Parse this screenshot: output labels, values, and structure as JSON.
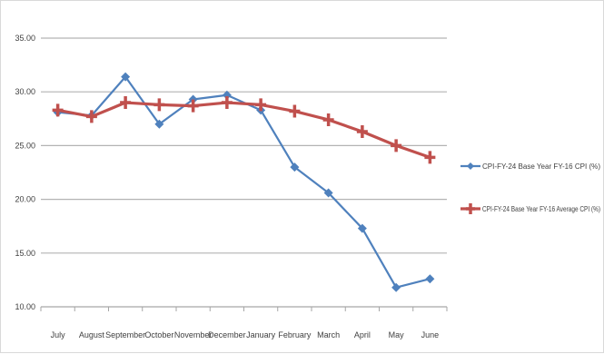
{
  "chart_data": {
    "type": "line",
    "title": "",
    "xlabel": "",
    "ylabel": "",
    "categories": [
      "July",
      "August",
      "September",
      "October",
      "November",
      "December",
      "January",
      "February",
      "March",
      "April",
      "May",
      "June"
    ],
    "ylim": [
      10.0,
      35.0
    ],
    "yticks": [
      "10.00",
      "15.00",
      "20.00",
      "25.00",
      "30.00",
      "35.00"
    ],
    "grid": true,
    "legend_position": "right",
    "series": [
      {
        "name": "CPI-FY-24 Base Year FY-16 CPI (%)",
        "color": "#4f81bd",
        "marker": "diamond",
        "values": [
          28.1,
          27.8,
          31.4,
          27.0,
          29.3,
          29.7,
          28.3,
          23.0,
          20.6,
          17.3,
          11.8,
          12.6
        ]
      },
      {
        "name": "CPI-FY-24 Base Year FY-16 Average CPI (%)",
        "color": "#c0504d",
        "marker": "plus",
        "values": [
          28.3,
          27.7,
          29.0,
          28.8,
          28.7,
          29.0,
          28.8,
          28.2,
          27.4,
          26.3,
          25.0,
          23.9
        ]
      }
    ]
  }
}
